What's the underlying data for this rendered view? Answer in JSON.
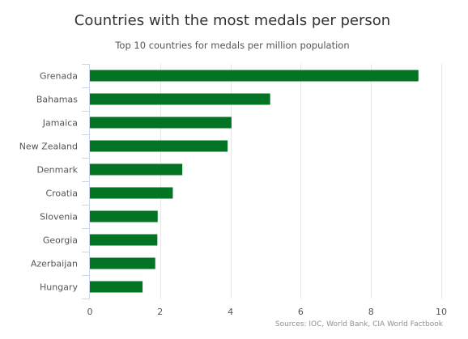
{
  "chart_data": {
    "type": "bar",
    "orientation": "horizontal",
    "title": "Countries with the most medals per person",
    "subtitle": "Top 10 countries for medals per million population",
    "categories": [
      "Grenada",
      "Bahamas",
      "Jamaica",
      "New Zealand",
      "Denmark",
      "Croatia",
      "Slovenia",
      "Georgia",
      "Azerbaijan",
      "Hungary"
    ],
    "values": [
      9.35,
      5.13,
      4.03,
      3.92,
      2.63,
      2.36,
      1.93,
      1.92,
      1.86,
      1.5
    ],
    "xlabel": "",
    "ylabel": "",
    "xlim": [
      0,
      10
    ],
    "xticks": [
      0,
      2,
      4,
      6,
      8,
      10
    ],
    "grid": true,
    "bar_color": "#037423",
    "credits": "Sources: IOC, World Bank, CIA World Factbook"
  }
}
